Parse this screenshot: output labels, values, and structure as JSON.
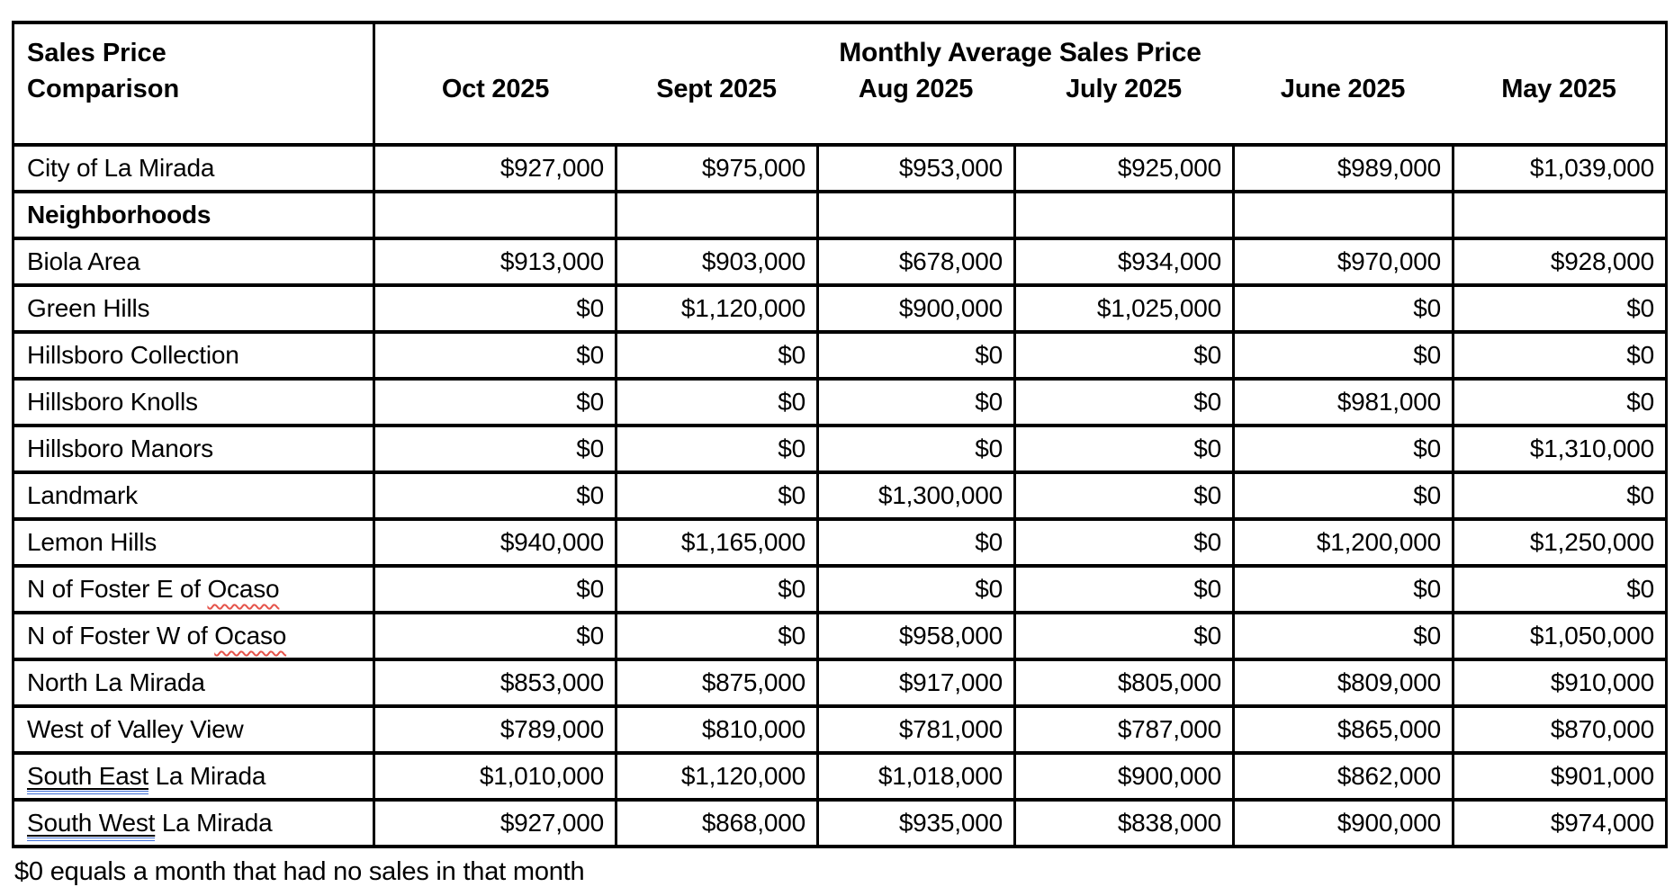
{
  "colors": {
    "background": "#ffffff",
    "text": "#000000",
    "table_border": "#000000",
    "spellcheck_underline": "#e5544b",
    "grammar_underline": "#3f6fd8"
  },
  "table": {
    "corner_title_line1": "Sales Price",
    "corner_title_line2": "Comparison",
    "months_title": "Monthly Average Sales Price",
    "months": [
      "Oct 2025",
      "Sept 2025",
      "Aug 2025",
      "July 2025",
      "June 2025",
      "May 2025"
    ],
    "rows": [
      {
        "label_parts": [
          {
            "text": "City of La Mirada"
          }
        ],
        "bold": false,
        "values": [
          "$927,000",
          "$975,000",
          "$953,000",
          "$925,000",
          "$989,000",
          "$1,039,000"
        ]
      },
      {
        "label_parts": [
          {
            "text": "Neighborhoods"
          }
        ],
        "bold": true,
        "values": [
          "",
          "",
          "",
          "",
          "",
          ""
        ]
      },
      {
        "label_parts": [
          {
            "text": "Biola Area"
          }
        ],
        "bold": false,
        "values": [
          "$913,000",
          "$903,000",
          "$678,000",
          "$934,000",
          "$970,000",
          "$928,000"
        ]
      },
      {
        "label_parts": [
          {
            "text": "Green Hills"
          }
        ],
        "bold": false,
        "values": [
          "$0",
          "$1,120,000",
          "$900,000",
          "$1,025,000",
          "$0",
          "$0"
        ]
      },
      {
        "label_parts": [
          {
            "text": "Hillsboro Collection"
          }
        ],
        "bold": false,
        "values": [
          "$0",
          "$0",
          "$0",
          "$0",
          "$0",
          "$0"
        ]
      },
      {
        "label_parts": [
          {
            "text": "Hillsboro Knolls"
          }
        ],
        "bold": false,
        "values": [
          "$0",
          "$0",
          "$0",
          "$0",
          "$981,000",
          "$0"
        ]
      },
      {
        "label_parts": [
          {
            "text": "Hillsboro Manors"
          }
        ],
        "bold": false,
        "values": [
          "$0",
          "$0",
          "$0",
          "$0",
          "$0",
          "$1,310,000"
        ]
      },
      {
        "label_parts": [
          {
            "text": "Landmark"
          }
        ],
        "bold": false,
        "values": [
          "$0",
          "$0",
          "$1,300,000",
          "$0",
          "$0",
          "$0"
        ]
      },
      {
        "label_parts": [
          {
            "text": "Lemon Hills"
          }
        ],
        "bold": false,
        "values": [
          "$940,000",
          "$1,165,000",
          "$0",
          "$0",
          "$1,200,000",
          "$1,250,000"
        ]
      },
      {
        "label_parts": [
          {
            "text": "N of Foster E of "
          },
          {
            "text": "Ocaso",
            "marks": [
              "spell"
            ]
          }
        ],
        "bold": false,
        "values": [
          "$0",
          "$0",
          "$0",
          "$0",
          "$0",
          "$0"
        ]
      },
      {
        "label_parts": [
          {
            "text": "N of Foster W of "
          },
          {
            "text": "Ocaso",
            "marks": [
              "spell"
            ]
          }
        ],
        "bold": false,
        "values": [
          "$0",
          "$0",
          "$958,000",
          "$0",
          "$0",
          "$1,050,000"
        ]
      },
      {
        "label_parts": [
          {
            "text": "North La Mirada"
          }
        ],
        "bold": false,
        "values": [
          "$853,000",
          "$875,000",
          "$917,000",
          "$805,000",
          "$809,000",
          "$910,000"
        ]
      },
      {
        "label_parts": [
          {
            "text": "West of Valley View"
          }
        ],
        "bold": false,
        "values": [
          "$789,000",
          "$810,000",
          "$781,000",
          "$787,000",
          "$865,000",
          "$870,000"
        ]
      },
      {
        "label_parts": [
          {
            "text": "South East",
            "marks": [
              "underline",
              "grammar"
            ]
          },
          {
            "text": " La Mirada"
          }
        ],
        "bold": false,
        "values": [
          "$1,010,000",
          "$1,120,000",
          "$1,018,000",
          "$900,000",
          "$862,000",
          "$901,000"
        ]
      },
      {
        "label_parts": [
          {
            "text": "South West",
            "marks": [
              "underline",
              "grammar"
            ]
          },
          {
            "text": " La Mirada"
          }
        ],
        "bold": false,
        "values": [
          "$927,000",
          "$868,000",
          "$935,000",
          "$838,000",
          "$900,000",
          "$974,000"
        ]
      }
    ],
    "footnote": "$0 equals a month that had no sales in that month"
  }
}
